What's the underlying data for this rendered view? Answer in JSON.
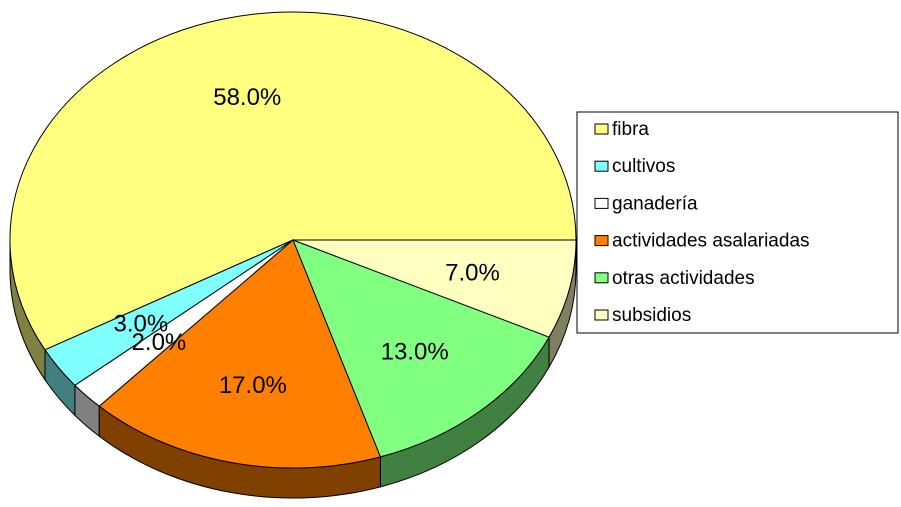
{
  "chart_data": {
    "type": "pie",
    "categories": [
      "fibra",
      "cultivos",
      "ganadería",
      "actividades asalariadas",
      "otras actividades",
      "subsidios"
    ],
    "values": [
      58,
      3,
      2,
      17,
      13,
      7
    ],
    "value_labels": [
      "58.0%",
      "3.0%",
      "2.0%",
      "17.0%",
      "13.0%",
      "7.0%"
    ],
    "colors": [
      "#FFFF80",
      "#80FFFF",
      "#FFFFFF",
      "#FF8000",
      "#80FF80",
      "#FFFFC0"
    ],
    "legend": "right"
  }
}
